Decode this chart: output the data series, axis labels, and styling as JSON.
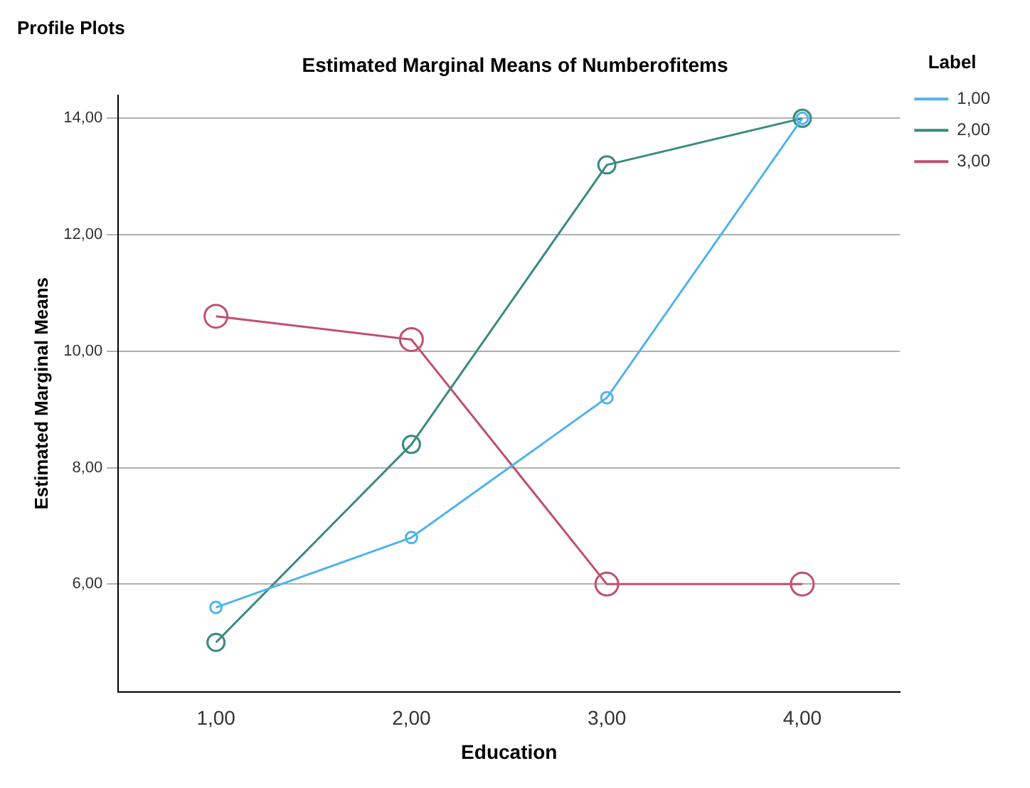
{
  "chart_data": {
    "type": "line",
    "title": "Estimated Marginal Means of Numberofitems",
    "xlabel": "Education",
    "ylabel": "Estimated Marginal Means",
    "legend_title": "Label",
    "annotations": [
      "Profile Plots"
    ],
    "categories": [
      "1,00",
      "2,00",
      "3,00",
      "4,00"
    ],
    "series": [
      {
        "name": "1,00",
        "color": "#4fb3f0",
        "values": [
          5.6,
          6.8,
          9.2,
          14.0
        ]
      },
      {
        "name": "2,00",
        "color": "#3a8a80",
        "values": [
          5.0,
          8.4,
          13.2,
          14.0
        ]
      },
      {
        "name": "3,00",
        "color": "#c0506e",
        "values": [
          10.6,
          10.2,
          6.0,
          6.0
        ]
      }
    ],
    "ylim": [
      4.15,
      14.4
    ],
    "yticks": [
      {
        "value": 6,
        "label": "6,00"
      },
      {
        "value": 8,
        "label": "8,00"
      },
      {
        "value": 10,
        "label": "10,00"
      },
      {
        "value": 12,
        "label": "12,00"
      },
      {
        "value": 14,
        "label": "14,00"
      }
    ],
    "grid": "y",
    "legend": "top right",
    "marker": "circle",
    "line_style": "solid"
  }
}
